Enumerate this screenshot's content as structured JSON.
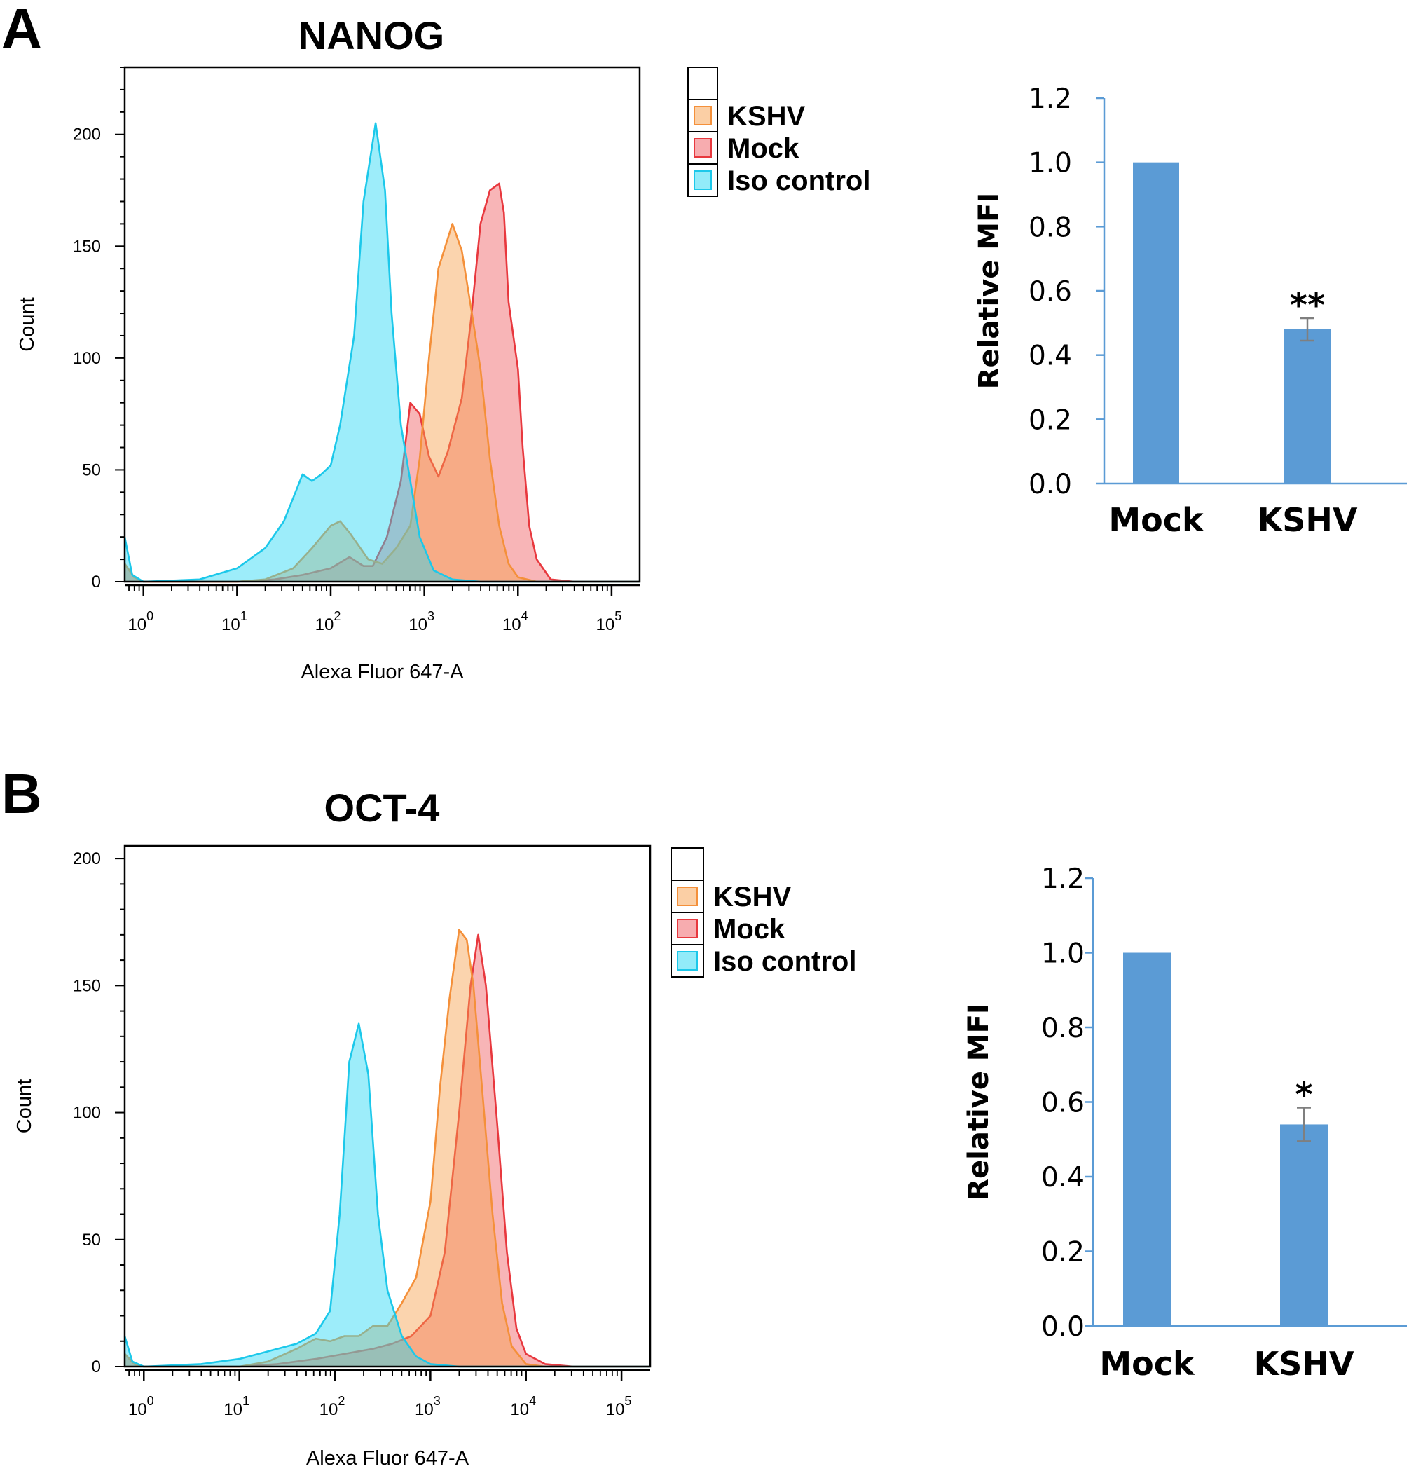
{
  "figure": {
    "panels": [
      {
        "letter": "A"
      },
      {
        "letter": "B"
      }
    ]
  },
  "colors": {
    "kshv_fill": "#f7a04c",
    "kshv_line": "#f4903a",
    "mock_fill": "#f05a60",
    "mock_line": "#e8383e",
    "iso_fill": "#25d8f4",
    "iso_line": "#1cc8ea",
    "bar": "#5b9bd5",
    "bar_axis": "#5b9bd5",
    "error": "#7f7f7f"
  },
  "chart_data": [
    {
      "type": "area",
      "title": "NANOG",
      "xlabel": "Alexa Fluor 647-A",
      "ylabel": "Count",
      "x_scale": "log",
      "xlim_log10": [
        -0.2,
        5.3
      ],
      "ylim": [
        0,
        230
      ],
      "yticks": [
        0,
        50,
        100,
        150,
        200
      ],
      "xtick_labels": [
        {
          "base": "10",
          "exp": "0"
        },
        {
          "base": "10",
          "exp": "1"
        },
        {
          "base": "10",
          "exp": "2"
        },
        {
          "base": "10",
          "exp": "3"
        },
        {
          "base": "10",
          "exp": "4"
        },
        {
          "base": "10",
          "exp": "5"
        }
      ],
      "legend": [
        "KSHV",
        "Mock",
        "Iso control"
      ],
      "series": [
        {
          "name": "Mock",
          "color_key": "mock",
          "points": [
            [
              -0.2,
              8
            ],
            [
              -0.1,
              2
            ],
            [
              0,
              0
            ],
            [
              1,
              0
            ],
            [
              1.4,
              1
            ],
            [
              1.7,
              3
            ],
            [
              2,
              6
            ],
            [
              2.2,
              11
            ],
            [
              2.35,
              7
            ],
            [
              2.45,
              7
            ],
            [
              2.6,
              20
            ],
            [
              2.75,
              45
            ],
            [
              2.85,
              80
            ],
            [
              2.95,
              75
            ],
            [
              3.05,
              56
            ],
            [
              3.15,
              47
            ],
            [
              3.25,
              58
            ],
            [
              3.4,
              82
            ],
            [
              3.5,
              118
            ],
            [
              3.6,
              160
            ],
            [
              3.7,
              175
            ],
            [
              3.8,
              178
            ],
            [
              3.85,
              165
            ],
            [
              3.9,
              125
            ],
            [
              4,
              95
            ],
            [
              4.05,
              60
            ],
            [
              4.12,
              25
            ],
            [
              4.2,
              10
            ],
            [
              4.35,
              1
            ],
            [
              4.6,
              0
            ],
            [
              5.3,
              0
            ]
          ]
        },
        {
          "name": "KSHV",
          "color_key": "kshv",
          "points": [
            [
              -0.2,
              8
            ],
            [
              -0.1,
              2
            ],
            [
              0,
              0
            ],
            [
              1,
              0
            ],
            [
              1.3,
              1
            ],
            [
              1.6,
              6
            ],
            [
              1.8,
              15
            ],
            [
              2.0,
              25
            ],
            [
              2.1,
              27
            ],
            [
              2.2,
              22
            ],
            [
              2.3,
              16
            ],
            [
              2.4,
              10
            ],
            [
              2.55,
              8
            ],
            [
              2.7,
              15
            ],
            [
              2.85,
              25
            ],
            [
              2.95,
              55
            ],
            [
              3.05,
              100
            ],
            [
              3.15,
              140
            ],
            [
              3.3,
              160
            ],
            [
              3.4,
              148
            ],
            [
              3.5,
              122
            ],
            [
              3.6,
              95
            ],
            [
              3.7,
              55
            ],
            [
              3.8,
              25
            ],
            [
              3.9,
              8
            ],
            [
              4.0,
              2
            ],
            [
              4.2,
              0
            ],
            [
              5.3,
              0
            ]
          ]
        },
        {
          "name": "Iso control",
          "color_key": "iso",
          "points": [
            [
              -0.2,
              20
            ],
            [
              -0.12,
              3
            ],
            [
              0,
              0
            ],
            [
              0.6,
              1
            ],
            [
              1,
              6
            ],
            [
              1.3,
              15
            ],
            [
              1.5,
              27
            ],
            [
              1.7,
              48
            ],
            [
              1.8,
              45
            ],
            [
              1.9,
              48
            ],
            [
              2.0,
              52
            ],
            [
              2.1,
              70
            ],
            [
              2.25,
              110
            ],
            [
              2.35,
              170
            ],
            [
              2.48,
              205
            ],
            [
              2.58,
              175
            ],
            [
              2.65,
              120
            ],
            [
              2.75,
              70
            ],
            [
              2.85,
              45
            ],
            [
              2.95,
              20
            ],
            [
              3.1,
              5
            ],
            [
              3.3,
              1
            ],
            [
              3.6,
              0
            ],
            [
              5.3,
              0
            ]
          ]
        }
      ]
    },
    {
      "type": "bar",
      "ylabel": "Relative MFI",
      "categories": [
        "Mock",
        "KSHV"
      ],
      "values": [
        1.0,
        0.48
      ],
      "errors": [
        0,
        0.035
      ],
      "significance": [
        "",
        "**"
      ],
      "ylim": [
        0,
        1.2
      ],
      "yticks": [
        "0.0",
        "0.2",
        "0.4",
        "0.6",
        "0.8",
        "1.0",
        "1.2"
      ]
    },
    {
      "type": "area",
      "title": "OCT-4",
      "xlabel": "Alexa Fluor 647-A",
      "ylabel": "Count",
      "x_scale": "log",
      "xlim_log10": [
        -0.2,
        5.3
      ],
      "ylim": [
        0,
        205
      ],
      "yticks": [
        0,
        50,
        100,
        150,
        200
      ],
      "xtick_labels": [
        {
          "base": "10",
          "exp": "0"
        },
        {
          "base": "10",
          "exp": "1"
        },
        {
          "base": "10",
          "exp": "2"
        },
        {
          "base": "10",
          "exp": "3"
        },
        {
          "base": "10",
          "exp": "4"
        },
        {
          "base": "10",
          "exp": "5"
        }
      ],
      "legend": [
        "KSHV",
        "Mock",
        "Iso control"
      ],
      "series": [
        {
          "name": "Mock",
          "color_key": "mock",
          "points": [
            [
              -0.2,
              5
            ],
            [
              -0.1,
              1
            ],
            [
              0,
              0
            ],
            [
              1,
              0
            ],
            [
              1.4,
              1
            ],
            [
              1.8,
              3
            ],
            [
              2.1,
              5
            ],
            [
              2.4,
              7
            ],
            [
              2.6,
              9
            ],
            [
              2.8,
              12
            ],
            [
              3.0,
              20
            ],
            [
              3.15,
              45
            ],
            [
              3.3,
              100
            ],
            [
              3.42,
              150
            ],
            [
              3.5,
              170
            ],
            [
              3.58,
              150
            ],
            [
              3.7,
              95
            ],
            [
              3.8,
              45
            ],
            [
              3.9,
              15
            ],
            [
              4.0,
              5
            ],
            [
              4.2,
              1
            ],
            [
              4.5,
              0
            ],
            [
              5.3,
              0
            ]
          ]
        },
        {
          "name": "KSHV",
          "color_key": "kshv",
          "points": [
            [
              -0.2,
              5
            ],
            [
              -0.1,
              1
            ],
            [
              0,
              0
            ],
            [
              1,
              0
            ],
            [
              1.3,
              2
            ],
            [
              1.6,
              7
            ],
            [
              1.8,
              11
            ],
            [
              1.95,
              10
            ],
            [
              2.1,
              12
            ],
            [
              2.25,
              12
            ],
            [
              2.4,
              16
            ],
            [
              2.55,
              16
            ],
            [
              2.7,
              25
            ],
            [
              2.85,
              35
            ],
            [
              3.0,
              65
            ],
            [
              3.1,
              110
            ],
            [
              3.2,
              145
            ],
            [
              3.3,
              172
            ],
            [
              3.38,
              168
            ],
            [
              3.45,
              150
            ],
            [
              3.55,
              105
            ],
            [
              3.65,
              60
            ],
            [
              3.75,
              25
            ],
            [
              3.85,
              8
            ],
            [
              4.0,
              1
            ],
            [
              4.2,
              0
            ],
            [
              5.3,
              0
            ]
          ]
        },
        {
          "name": "Iso control",
          "color_key": "iso",
          "points": [
            [
              -0.2,
              12
            ],
            [
              -0.12,
              2
            ],
            [
              0,
              0
            ],
            [
              0.6,
              1
            ],
            [
              1,
              3
            ],
            [
              1.3,
              6
            ],
            [
              1.6,
              9
            ],
            [
              1.8,
              13
            ],
            [
              1.95,
              22
            ],
            [
              2.05,
              60
            ],
            [
              2.15,
              120
            ],
            [
              2.25,
              135
            ],
            [
              2.35,
              115
            ],
            [
              2.45,
              60
            ],
            [
              2.55,
              30
            ],
            [
              2.7,
              12
            ],
            [
              2.85,
              4
            ],
            [
              3.0,
              1
            ],
            [
              3.3,
              0
            ],
            [
              5.3,
              0
            ]
          ]
        }
      ]
    },
    {
      "type": "bar",
      "ylabel": "Relative MFI",
      "categories": [
        "Mock",
        "KSHV"
      ],
      "values": [
        1.0,
        0.54
      ],
      "errors": [
        0,
        0.045
      ],
      "significance": [
        "",
        "*"
      ],
      "ylim": [
        0,
        1.2
      ],
      "yticks": [
        "0.0",
        "0.2",
        "0.4",
        "0.6",
        "0.8",
        "1.0",
        "1.2"
      ]
    }
  ]
}
